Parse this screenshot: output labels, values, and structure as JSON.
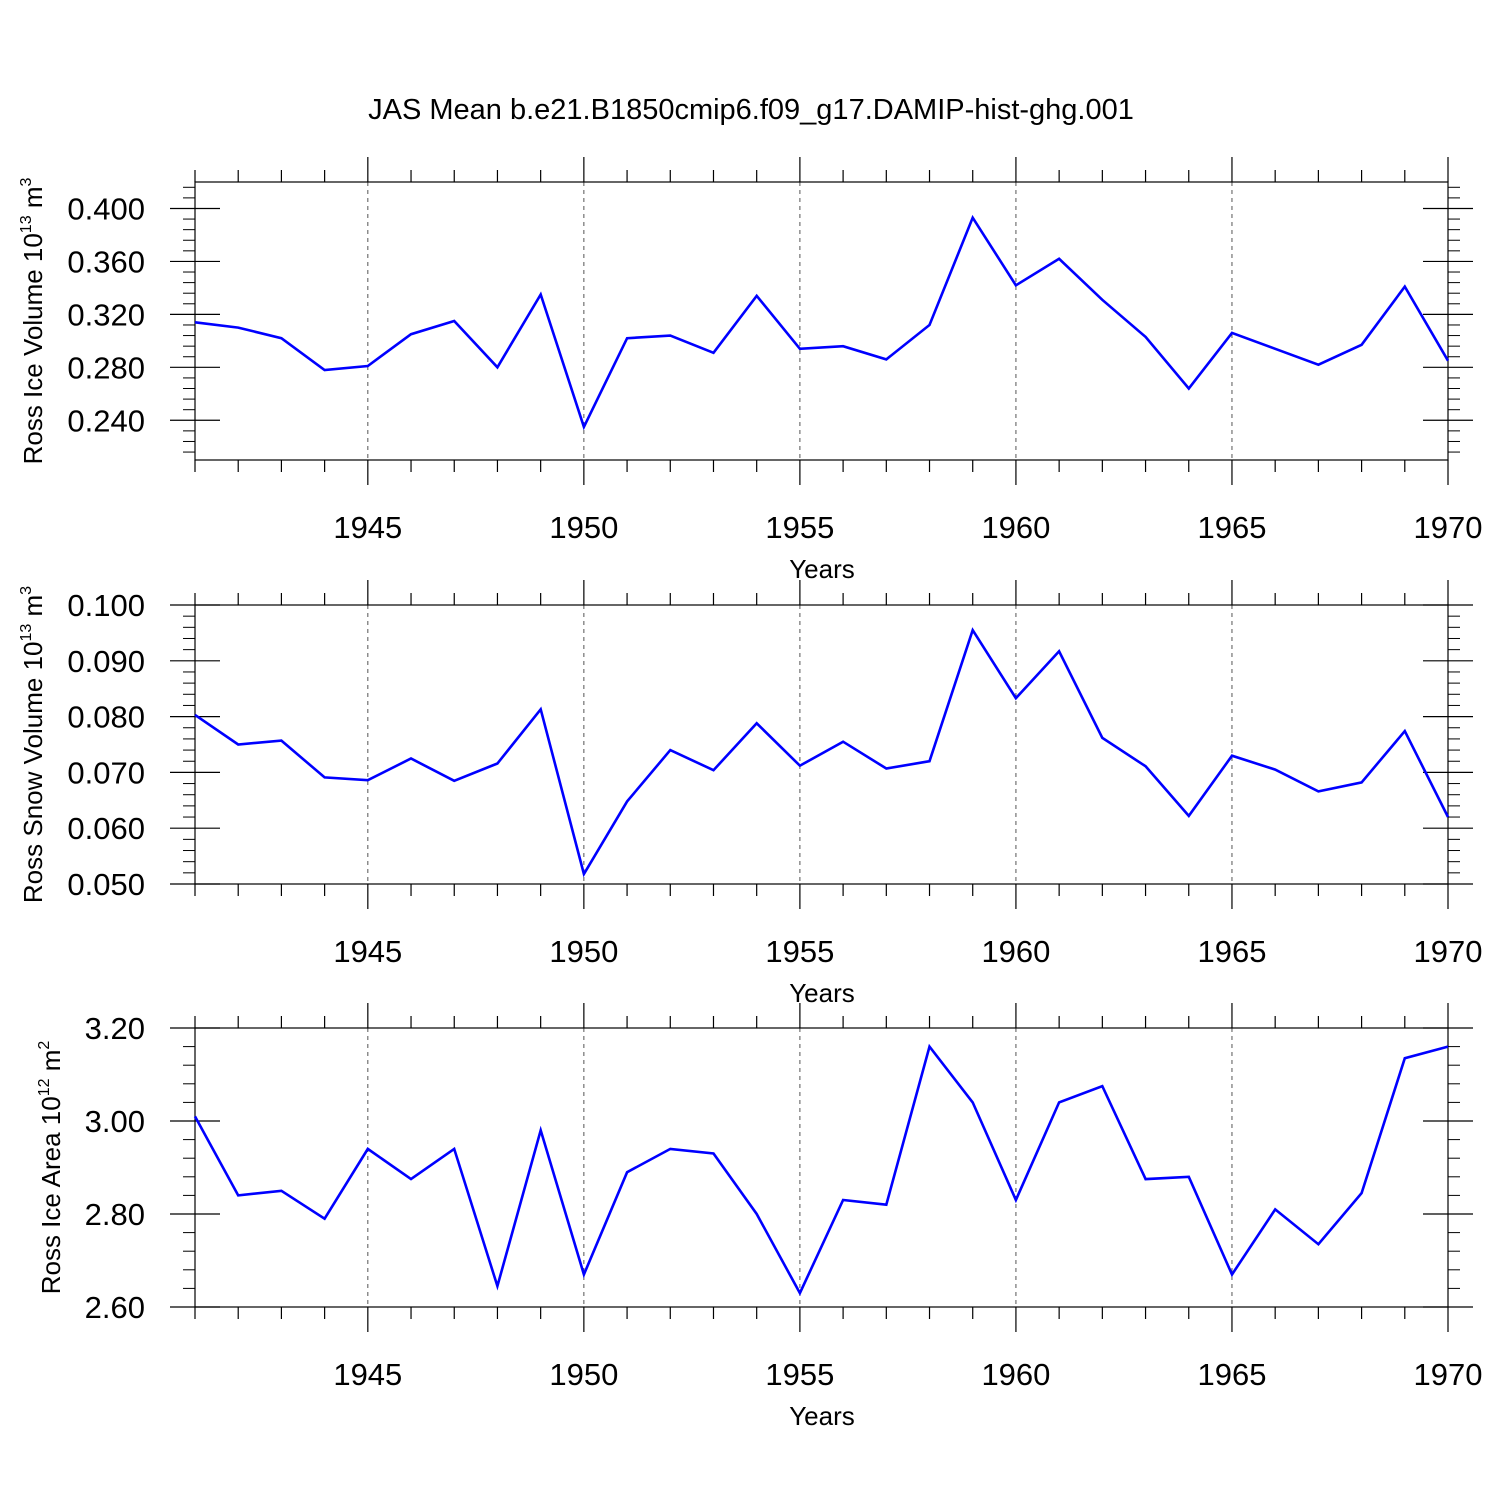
{
  "title": "JAS Mean b.e21.B1850cmip6.f09_g17.DAMIP-hist-ghg.001",
  "colors": {
    "line": "#0000ff",
    "axis": "#000000",
    "grid": "#555555"
  },
  "chart_data": [
    {
      "type": "line",
      "ylabel_main": "Ross Ice Volume 10",
      "ylabel_exp": "13",
      "ylabel_unit": " m",
      "ylabel_unit_exp": "3",
      "xlabel": "Years",
      "xlim": [
        1941,
        1970
      ],
      "ylim": [
        0.21,
        0.42
      ],
      "yticks": [
        0.24,
        0.28,
        0.32,
        0.36,
        0.4
      ],
      "ytick_labels": [
        "0.240",
        "0.280",
        "0.320",
        "0.360",
        "0.400"
      ],
      "xticks": [
        1945,
        1950,
        1955,
        1960,
        1965,
        1970
      ],
      "xtick_labels": [
        "1945",
        "1950",
        "1955",
        "1960",
        "1965",
        "1970"
      ],
      "grid_x": [
        1945,
        1950,
        1955,
        1960,
        1965
      ],
      "series": [
        {
          "name": "Ross Ice Volume",
          "x": [
            1941,
            1942,
            1943,
            1944,
            1945,
            1946,
            1947,
            1948,
            1949,
            1950,
            1951,
            1952,
            1953,
            1954,
            1955,
            1956,
            1957,
            1958,
            1959,
            1960,
            1961,
            1962,
            1963,
            1964,
            1965,
            1966,
            1967,
            1968,
            1969,
            1970
          ],
          "values": [
            0.314,
            0.31,
            0.302,
            0.278,
            0.281,
            0.305,
            0.315,
            0.28,
            0.335,
            0.235,
            0.302,
            0.304,
            0.291,
            0.334,
            0.294,
            0.296,
            0.286,
            0.312,
            0.393,
            0.342,
            0.362,
            0.331,
            0.303,
            0.264,
            0.306,
            0.294,
            0.282,
            0.297,
            0.341,
            0.285
          ]
        }
      ]
    },
    {
      "type": "line",
      "ylabel_main": "Ross Snow Volume 10",
      "ylabel_exp": "13",
      "ylabel_unit": " m",
      "ylabel_unit_exp": "3",
      "xlabel": "Years",
      "xlim": [
        1941,
        1970
      ],
      "ylim": [
        0.05,
        0.1
      ],
      "yticks": [
        0.05,
        0.06,
        0.07,
        0.08,
        0.09,
        0.1
      ],
      "ytick_labels": [
        "0.050",
        "0.060",
        "0.070",
        "0.080",
        "0.090",
        "0.100"
      ],
      "xticks": [
        1945,
        1950,
        1955,
        1960,
        1965,
        1970
      ],
      "xtick_labels": [
        "1945",
        "1950",
        "1955",
        "1960",
        "1965",
        "1970"
      ],
      "grid_x": [
        1945,
        1950,
        1955,
        1960,
        1965
      ],
      "series": [
        {
          "name": "Ross Snow Volume",
          "x": [
            1941,
            1942,
            1943,
            1944,
            1945,
            1946,
            1947,
            1948,
            1949,
            1950,
            1951,
            1952,
            1953,
            1954,
            1955,
            1956,
            1957,
            1958,
            1959,
            1960,
            1961,
            1962,
            1963,
            1964,
            1965,
            1966,
            1967,
            1968,
            1969,
            1970
          ],
          "values": [
            0.0803,
            0.075,
            0.0757,
            0.0691,
            0.0686,
            0.0725,
            0.0685,
            0.0716,
            0.0813,
            0.0518,
            0.0648,
            0.074,
            0.0704,
            0.0788,
            0.0712,
            0.0755,
            0.0707,
            0.072,
            0.0955,
            0.0833,
            0.0917,
            0.0762,
            0.0711,
            0.0622,
            0.073,
            0.0705,
            0.0666,
            0.0682,
            0.0774,
            0.062
          ]
        }
      ]
    },
    {
      "type": "line",
      "ylabel_main": "Ross Ice Area 10",
      "ylabel_exp": "12",
      "ylabel_unit": " m",
      "ylabel_unit_exp": "2",
      "xlabel": "Years",
      "xlim": [
        1941,
        1970
      ],
      "ylim": [
        2.6,
        3.2
      ],
      "yticks": [
        2.6,
        2.8,
        3.0,
        3.2
      ],
      "ytick_labels": [
        "2.60",
        "2.80",
        "3.00",
        "3.20"
      ],
      "xticks": [
        1945,
        1950,
        1955,
        1960,
        1965,
        1970
      ],
      "xtick_labels": [
        "1945",
        "1950",
        "1955",
        "1960",
        "1965",
        "1970"
      ],
      "grid_x": [
        1945,
        1950,
        1955,
        1960,
        1965
      ],
      "series": [
        {
          "name": "Ross Ice Area",
          "x": [
            1941,
            1942,
            1943,
            1944,
            1945,
            1946,
            1947,
            1948,
            1949,
            1950,
            1951,
            1952,
            1953,
            1954,
            1955,
            1956,
            1957,
            1958,
            1959,
            1960,
            1961,
            1962,
            1963,
            1964,
            1965,
            1966,
            1967,
            1968,
            1969,
            1970
          ],
          "values": [
            3.01,
            2.84,
            2.85,
            2.79,
            2.94,
            2.875,
            2.94,
            2.645,
            2.98,
            2.67,
            2.89,
            2.94,
            2.93,
            2.8,
            2.63,
            2.83,
            2.82,
            3.16,
            3.04,
            2.83,
            3.04,
            3.075,
            2.875,
            2.88,
            2.67,
            2.81,
            2.735,
            2.845,
            3.135,
            3.16
          ]
        }
      ]
    }
  ]
}
